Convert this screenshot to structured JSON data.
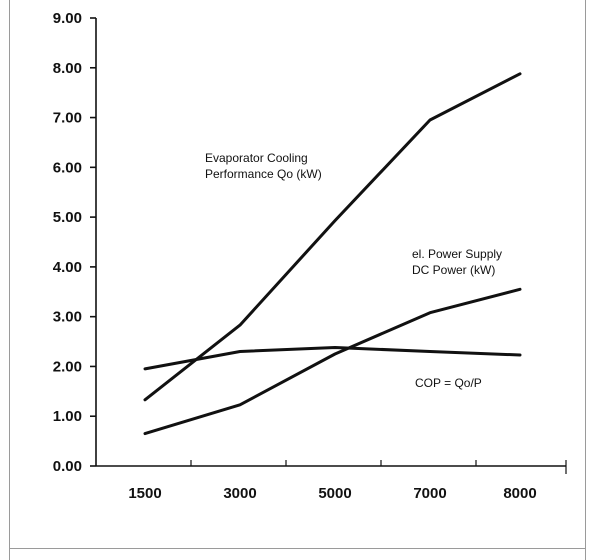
{
  "chart_data": {
    "type": "line",
    "categories": [
      "1500",
      "3000",
      "5000",
      "7000",
      "8000"
    ],
    "ylim": [
      0,
      9
    ],
    "yticks": [
      "0.00",
      "1.00",
      "2.00",
      "3.00",
      "4.00",
      "5.00",
      "6.00",
      "7.00",
      "8.00",
      "9.00"
    ],
    "grid": false,
    "series": [
      {
        "name": "Evaporator Cooling Performance Qo (kW)",
        "values": [
          1.33,
          2.83,
          4.93,
          6.95,
          7.88
        ]
      },
      {
        "name": "el. Power Supply DC Power (kW)",
        "values": [
          0.65,
          1.23,
          2.25,
          3.08,
          3.55
        ]
      },
      {
        "name": "COP = Qo/P",
        "values": [
          1.95,
          2.3,
          2.38,
          2.3,
          2.23
        ]
      }
    ],
    "annotations": [
      {
        "lines": [
          "Evaporator Cooling",
          "Performance Qo (kW)"
        ]
      },
      {
        "lines": [
          "el. Power Supply",
          "DC Power (kW)"
        ]
      },
      {
        "lines": [
          "COP = Qo/P"
        ]
      }
    ]
  }
}
